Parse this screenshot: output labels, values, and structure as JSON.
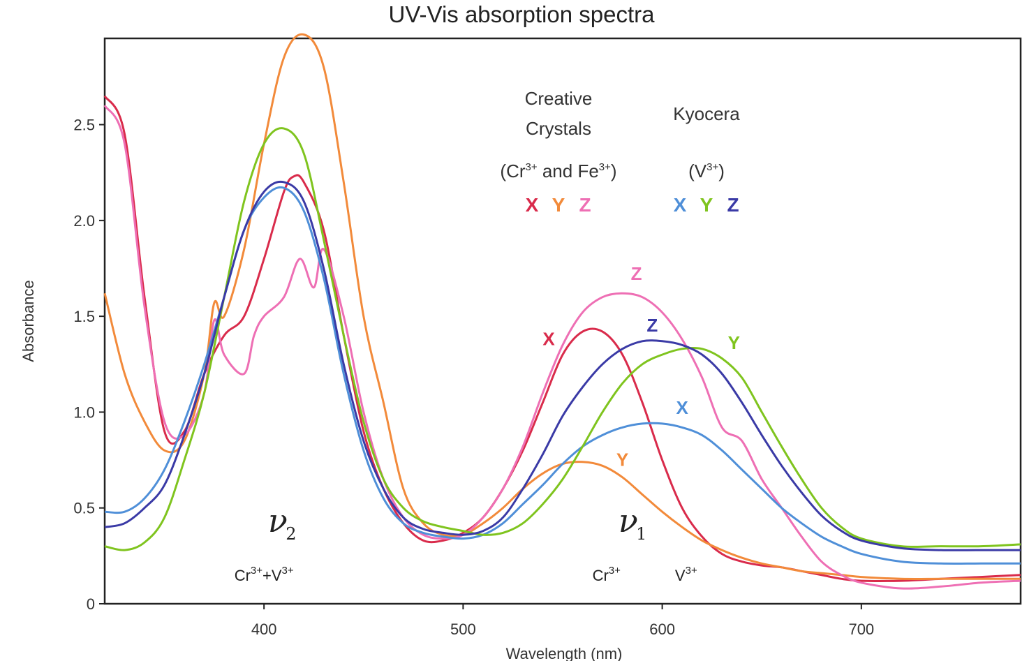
{
  "chart_data": {
    "type": "line",
    "title": "UV-Vis absorption spectra",
    "xlabel": "Wavelength (nm)",
    "ylabel": "Absorbance",
    "xlim": [
      320,
      780
    ],
    "ylim": [
      0,
      2.95
    ],
    "xticks": [
      400,
      500,
      600,
      700
    ],
    "yticks": [
      0,
      0.5,
      1.0,
      1.5,
      2.0,
      2.5
    ],
    "ytick_labels": [
      "0",
      "0.5",
      "1.0",
      "1.5",
      "2.0",
      "2.5"
    ],
    "grid": false,
    "legend": {
      "groups": [
        {
          "heading": [
            "Creative",
            "Crystals"
          ],
          "ions": "(Cr3+ and Fe3+)",
          "letters": [
            "X",
            "Y",
            "Z"
          ],
          "colors": [
            "#d92b4b",
            "#f28a3a",
            "#ee6fb4"
          ]
        },
        {
          "heading": [
            "Kyocera"
          ],
          "ions": "(V3+)",
          "letters": [
            "X",
            "Y",
            "Z"
          ],
          "colors": [
            "#4f8fd8",
            "#7fc41e",
            "#3a3aa6"
          ]
        }
      ]
    },
    "series": [
      {
        "name": "X",
        "group": "Creative Crystals",
        "color": "#d92b4b",
        "x": [
          320,
          330,
          340,
          350,
          360,
          370,
          380,
          390,
          400,
          410,
          415,
          420,
          430,
          440,
          450,
          460,
          470,
          480,
          490,
          500,
          510,
          520,
          530,
          540,
          550,
          560,
          570,
          580,
          590,
          600,
          610,
          620,
          630,
          640,
          650,
          660,
          670,
          680,
          690,
          700,
          720,
          740,
          760,
          780
        ],
        "y": [
          2.65,
          2.45,
          1.6,
          0.9,
          0.9,
          1.2,
          1.4,
          1.5,
          1.8,
          2.15,
          2.23,
          2.2,
          1.95,
          1.4,
          0.9,
          0.6,
          0.42,
          0.33,
          0.33,
          0.37,
          0.45,
          0.6,
          0.8,
          1.05,
          1.3,
          1.42,
          1.42,
          1.3,
          1.05,
          0.75,
          0.5,
          0.35,
          0.26,
          0.22,
          0.2,
          0.19,
          0.17,
          0.15,
          0.13,
          0.12,
          0.12,
          0.13,
          0.14,
          0.15
        ]
      },
      {
        "name": "Y",
        "group": "Creative Crystals",
        "color": "#f28a3a",
        "x": [
          320,
          330,
          340,
          350,
          360,
          370,
          375,
          380,
          390,
          400,
          410,
          420,
          430,
          440,
          450,
          460,
          470,
          480,
          490,
          500,
          510,
          520,
          530,
          540,
          550,
          560,
          570,
          580,
          590,
          600,
          610,
          620,
          630,
          640,
          650,
          660,
          670,
          680,
          690,
          700,
          720,
          740,
          760,
          780
        ],
        "y": [
          1.62,
          1.2,
          0.95,
          0.8,
          0.85,
          1.2,
          1.57,
          1.5,
          1.85,
          2.4,
          2.85,
          2.97,
          2.8,
          2.2,
          1.5,
          1.05,
          0.6,
          0.42,
          0.36,
          0.36,
          0.42,
          0.5,
          0.6,
          0.68,
          0.73,
          0.74,
          0.72,
          0.66,
          0.57,
          0.48,
          0.4,
          0.33,
          0.28,
          0.24,
          0.21,
          0.19,
          0.17,
          0.16,
          0.15,
          0.14,
          0.13,
          0.13,
          0.13,
          0.13
        ]
      },
      {
        "name": "Z",
        "group": "Creative Crystals",
        "color": "#ee6fb4",
        "x": [
          320,
          330,
          340,
          350,
          360,
          370,
          375,
          380,
          390,
          395,
          400,
          410,
          418,
          425,
          430,
          440,
          450,
          460,
          470,
          480,
          490,
          500,
          510,
          520,
          530,
          540,
          550,
          560,
          570,
          580,
          590,
          600,
          610,
          620,
          630,
          640,
          650,
          660,
          670,
          680,
          690,
          700,
          720,
          740,
          760,
          780
        ],
        "y": [
          2.6,
          2.4,
          1.55,
          0.95,
          0.88,
          1.1,
          1.48,
          1.3,
          1.2,
          1.4,
          1.5,
          1.6,
          1.8,
          1.65,
          1.85,
          1.5,
          1.0,
          0.65,
          0.45,
          0.36,
          0.34,
          0.36,
          0.45,
          0.6,
          0.82,
          1.1,
          1.35,
          1.52,
          1.6,
          1.62,
          1.6,
          1.52,
          1.38,
          1.18,
          0.92,
          0.85,
          0.65,
          0.5,
          0.35,
          0.22,
          0.15,
          0.11,
          0.08,
          0.09,
          0.11,
          0.12
        ]
      },
      {
        "name": "X",
        "group": "Kyocera",
        "color": "#4f8fd8",
        "x": [
          320,
          330,
          340,
          350,
          360,
          370,
          380,
          390,
          400,
          410,
          420,
          430,
          440,
          450,
          460,
          470,
          480,
          490,
          500,
          510,
          520,
          530,
          540,
          550,
          560,
          570,
          580,
          590,
          600,
          610,
          620,
          630,
          640,
          650,
          660,
          670,
          680,
          690,
          700,
          720,
          740,
          760,
          780
        ],
        "y": [
          0.48,
          0.48,
          0.55,
          0.7,
          0.95,
          1.25,
          1.6,
          1.95,
          2.12,
          2.17,
          2.05,
          1.7,
          1.2,
          0.8,
          0.55,
          0.42,
          0.37,
          0.35,
          0.34,
          0.36,
          0.42,
          0.52,
          0.62,
          0.73,
          0.82,
          0.88,
          0.92,
          0.94,
          0.94,
          0.92,
          0.88,
          0.8,
          0.7,
          0.6,
          0.5,
          0.42,
          0.35,
          0.3,
          0.26,
          0.22,
          0.21,
          0.21,
          0.21
        ]
      },
      {
        "name": "Y",
        "group": "Kyocera",
        "color": "#7fc41e",
        "x": [
          320,
          330,
          340,
          350,
          360,
          370,
          380,
          390,
          400,
          410,
          420,
          430,
          440,
          450,
          460,
          470,
          480,
          490,
          500,
          510,
          520,
          530,
          540,
          550,
          560,
          570,
          580,
          590,
          600,
          610,
          620,
          630,
          640,
          650,
          660,
          670,
          680,
          690,
          700,
          720,
          740,
          760,
          780
        ],
        "y": [
          0.3,
          0.28,
          0.32,
          0.45,
          0.75,
          1.1,
          1.6,
          2.1,
          2.4,
          2.48,
          2.35,
          1.9,
          1.4,
          0.95,
          0.65,
          0.5,
          0.43,
          0.4,
          0.38,
          0.36,
          0.37,
          0.42,
          0.52,
          0.65,
          0.82,
          1.0,
          1.15,
          1.25,
          1.3,
          1.33,
          1.33,
          1.28,
          1.18,
          1.0,
          0.82,
          0.65,
          0.5,
          0.4,
          0.34,
          0.3,
          0.3,
          0.3,
          0.31
        ]
      },
      {
        "name": "Z",
        "group": "Kyocera",
        "color": "#3a3aa6",
        "x": [
          320,
          330,
          340,
          350,
          360,
          370,
          380,
          390,
          400,
          410,
          420,
          430,
          440,
          450,
          460,
          470,
          480,
          490,
          500,
          510,
          520,
          530,
          540,
          550,
          560,
          570,
          580,
          590,
          600,
          610,
          620,
          630,
          640,
          650,
          660,
          670,
          680,
          690,
          700,
          720,
          740,
          760,
          780
        ],
        "y": [
          0.4,
          0.42,
          0.5,
          0.62,
          0.88,
          1.2,
          1.6,
          1.95,
          2.15,
          2.2,
          2.1,
          1.75,
          1.25,
          0.85,
          0.6,
          0.45,
          0.39,
          0.37,
          0.36,
          0.38,
          0.45,
          0.6,
          0.78,
          0.98,
          1.13,
          1.25,
          1.33,
          1.37,
          1.37,
          1.35,
          1.3,
          1.2,
          1.05,
          0.88,
          0.72,
          0.58,
          0.46,
          0.38,
          0.33,
          0.29,
          0.28,
          0.28,
          0.28
        ]
      }
    ],
    "series_labels": [
      {
        "text": "X",
        "x": 543,
        "y": 1.35,
        "color": "#d92b4b"
      },
      {
        "text": "Y",
        "x": 580,
        "y": 0.72,
        "color": "#f28a3a"
      },
      {
        "text": "Z",
        "x": 587,
        "y": 1.69,
        "color": "#ee6fb4"
      },
      {
        "text": "X",
        "x": 610,
        "y": 0.99,
        "color": "#4f8fd8"
      },
      {
        "text": "Y",
        "x": 636,
        "y": 1.33,
        "color": "#7fc41e"
      },
      {
        "text": "Z",
        "x": 595,
        "y": 1.42,
        "color": "#3a3aa6"
      }
    ],
    "annotations": [
      {
        "symbol": "ν",
        "sub": "2",
        "ions": [
          {
            "text": "Cr3++V3+",
            "x": 400
          }
        ],
        "x": 409,
        "y": 0.4
      },
      {
        "symbol": "ν",
        "sub": "1",
        "ions": [
          {
            "text": "Cr3+",
            "x": 572
          },
          {
            "text": "V3+",
            "x": 612
          }
        ],
        "x": 585,
        "y": 0.4
      }
    ]
  }
}
